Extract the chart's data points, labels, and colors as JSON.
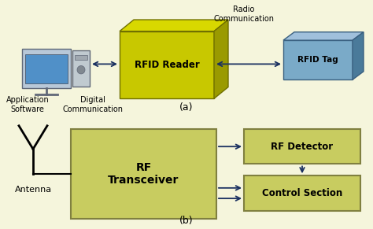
{
  "bg_color": "#F5F5DC",
  "olive_front": "#C8C800",
  "olive_top": "#D8D800",
  "olive_right": "#9A9A00",
  "olive_edge": "#707000",
  "tag_front": "#7AAAC8",
  "tag_top": "#A0C0DC",
  "tag_right": "#4A7A9A",
  "tag_edge": "#3A6080",
  "block_color": "#C8CC60",
  "block_edge": "#808040",
  "arrow_color": "#1a3060",
  "text_color": "#000000",
  "label_a": "(a)",
  "label_b": "(b)",
  "rfid_reader_label": "RFID Reader",
  "rfid_tag_label": "RFID Tag",
  "radio_comm_label": "Radio\nCommunication",
  "digital_comm_label": "Digital\nCommunication",
  "app_sw_label": "Application\nSoftware",
  "rf_transceiver_label": "RF\nTransceiver",
  "rf_detector_label": "RF Detector",
  "control_section_label": "Control Section",
  "antenna_label": "Antenna"
}
